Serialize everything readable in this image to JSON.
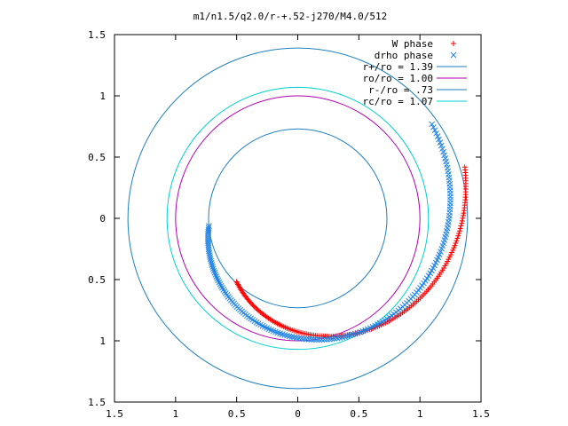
{
  "chart_data": {
    "type": "scatter",
    "title": "m1/n1.5/q2.0/r-+.52-j270/M4.0/512",
    "xlabel": "",
    "ylabel": "",
    "xlim": [
      -1.5,
      1.5
    ],
    "ylim": [
      -1.5,
      1.5
    ],
    "x_ticks": [
      -1.5,
      -1,
      -0.5,
      0,
      0.5,
      1,
      1.5
    ],
    "y_ticks": [
      -1.5,
      -1,
      -0.5,
      0,
      0.5,
      1,
      1.5
    ],
    "x_tick_labels": [
      "1.5",
      "1",
      "0.5",
      "0",
      "0.5",
      "1",
      "1.5"
    ],
    "y_tick_labels": [
      "1.5",
      "1",
      "0.5",
      "0",
      "0.5",
      "1",
      "1.5"
    ],
    "grid": false,
    "legend_position": "top-right",
    "scatter_series": [
      {
        "name": "W phase",
        "marker": "plus",
        "color": "#ff0000",
        "spiral": {
          "r_start": 0.72,
          "r_end": 1.43,
          "angle_start_deg": 226,
          "angle_end_deg": 377,
          "count": 170
        }
      },
      {
        "name": "drho phase",
        "marker": "cross",
        "color": "#1e82e6",
        "spiral": {
          "r_start": 0.73,
          "r_end": 1.34,
          "angle_start_deg": 185,
          "angle_end_deg": 395,
          "count": 180
        }
      }
    ],
    "circles": [
      {
        "name": "r+/ro = 1.39",
        "radius": 1.39,
        "color": "#1e7fbf"
      },
      {
        "name": "ro/ro = 1.00",
        "radius": 1.0,
        "color": "#b000b0"
      },
      {
        "name": "r-/ro = .73",
        "radius": 0.73,
        "color": "#1e7fbf"
      },
      {
        "name": "rc/ro = 1.07",
        "radius": 1.07,
        "color": "#00d0d0"
      }
    ],
    "legend": [
      {
        "label": "W phase",
        "kind": "plus",
        "color": "#ff0000"
      },
      {
        "label": "drho phase",
        "kind": "cross",
        "color": "#1e82e6"
      },
      {
        "label": "r+/ro = 1.39",
        "kind": "line",
        "color": "#1e7fbf"
      },
      {
        "label": "ro/ro = 1.00",
        "kind": "line",
        "color": "#b000b0"
      },
      {
        "label": "r-/ro = .73",
        "kind": "line",
        "color": "#1e7fbf"
      },
      {
        "label": "rc/ro = 1.07",
        "kind": "line",
        "color": "#00d0d0"
      }
    ]
  }
}
